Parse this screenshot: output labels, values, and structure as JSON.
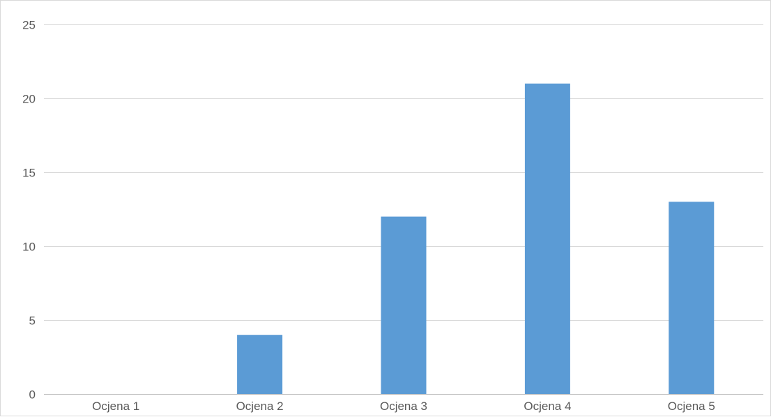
{
  "chart_data": {
    "type": "bar",
    "categories": [
      "Ocjena 1",
      "Ocjena 2",
      "Ocjena 3",
      "Ocjena 4",
      "Ocjena 5"
    ],
    "values": [
      0,
      4,
      12,
      21,
      13
    ],
    "ylim": [
      0,
      25
    ],
    "yticks": [
      0,
      5,
      10,
      15,
      20,
      25
    ],
    "grid": true,
    "legend": "none",
    "bar_color": "#5b9bd5"
  }
}
